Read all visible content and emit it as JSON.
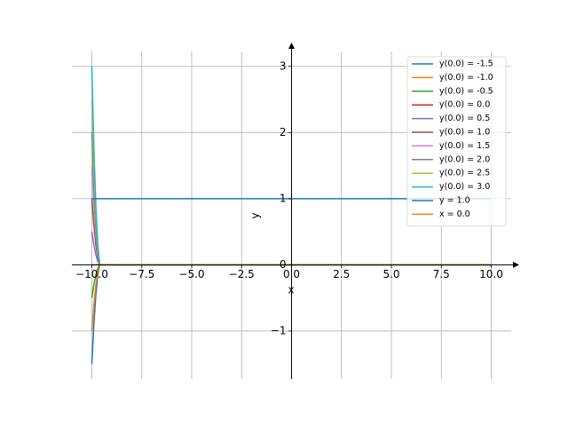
{
  "chart_data": {
    "type": "line",
    "x_label": "x",
    "y_label": "y",
    "x": [
      -10,
      -9.9,
      -9.8,
      -9.7,
      -9.6,
      10
    ],
    "series": [
      {
        "name": "y(0.0) = -1.5",
        "color": "#1f77b4",
        "values": [
          -1.5,
          -0.9,
          -0.45,
          -0.15,
          0,
          0
        ]
      },
      {
        "name": "y(0.0) = -1.0",
        "color": "#ff7f0e",
        "values": [
          -1.0,
          -0.6,
          -0.3,
          -0.1,
          0,
          0
        ]
      },
      {
        "name": "y(0.0) = -0.5",
        "color": "#2ca02c",
        "values": [
          -0.5,
          -0.3,
          -0.15,
          -0.05,
          0,
          0
        ]
      },
      {
        "name": "y(0.0) = 0.0",
        "color": "#d62728",
        "values": [
          0,
          0,
          0,
          0,
          0,
          0
        ]
      },
      {
        "name": "y(0.0) = 0.5",
        "color": "#9467bd",
        "values": [
          0.5,
          0.3,
          0.15,
          0.05,
          0,
          0
        ]
      },
      {
        "name": "y(0.0) = 1.0",
        "color": "#8c564b",
        "values": [
          1.0,
          0.6,
          0.3,
          0.1,
          0,
          0
        ]
      },
      {
        "name": "y(0.0) = 1.5",
        "color": "#e377c2",
        "values": [
          1.5,
          0.9,
          0.45,
          0.15,
          0,
          0
        ]
      },
      {
        "name": "y(0.0) = 2.0",
        "color": "#7f7f7f",
        "values": [
          2.0,
          1.2,
          0.6,
          0.2,
          0,
          0
        ]
      },
      {
        "name": "y(0.0) = 2.5",
        "color": "#bcbd22",
        "values": [
          2.5,
          1.5,
          0.75,
          0.25,
          0,
          0
        ]
      },
      {
        "name": "y(0.0) = 3.0",
        "color": "#17becf",
        "values": [
          3.0,
          1.8,
          0.9,
          0.3,
          0,
          0
        ]
      },
      {
        "name": "y = 1.0",
        "color": "#1f77b4",
        "values": [
          1,
          1,
          1,
          1,
          1,
          1
        ]
      },
      {
        "name": "x = 0.0",
        "color": "#ff7f0e",
        "values": [
          0,
          0,
          0,
          0,
          0,
          0
        ]
      }
    ],
    "xlim": [
      -11,
      11
    ],
    "ylim": [
      -1.725,
      3.225
    ],
    "xticks": [
      {
        "value": -10,
        "label": "−10.0"
      },
      {
        "value": -7.5,
        "label": "−7.5"
      },
      {
        "value": -5,
        "label": "−5.0"
      },
      {
        "value": -2.5,
        "label": "−2.5"
      },
      {
        "value": 0,
        "label": "0.0"
      },
      2.5,
      {
        "value": 5,
        "label": "5.0"
      },
      7.5,
      {
        "value": 10,
        "label": "10.0"
      }
    ],
    "yticks": [
      {
        "value": -1,
        "label": "−1"
      },
      0,
      1,
      2,
      3
    ],
    "grid": true,
    "legend": "upper right"
  }
}
